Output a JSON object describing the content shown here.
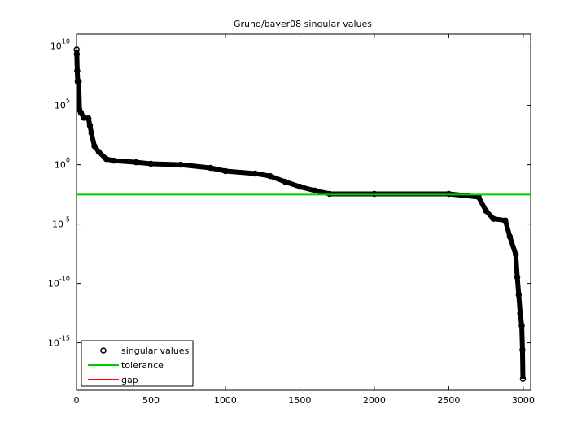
{
  "chart_data": {
    "type": "scatter",
    "title": "Grund/bayer08 singular values",
    "xlim": [
      0,
      3050
    ],
    "xticks": [
      0,
      500,
      1000,
      1500,
      2000,
      2500,
      3000
    ],
    "ylim": [
      1e-19,
      100000000000.0
    ],
    "log_y": true,
    "yticks": [
      {
        "value": 10000000000.0,
        "label": "10^10"
      },
      {
        "value": 100000.0,
        "label": "10^5"
      },
      {
        "value": 1,
        "label": "10^0"
      },
      {
        "value": 1e-05,
        "label": "10^-5"
      },
      {
        "value": 1e-10,
        "label": "10^-10"
      },
      {
        "value": 1e-15,
        "label": "10^-15"
      }
    ],
    "legend": "lower left",
    "series": [
      {
        "name": "singular values",
        "color": "#000000",
        "marker": "o",
        "x": [
          1,
          2,
          5,
          8,
          15,
          20,
          30,
          50,
          80,
          90,
          100,
          120,
          150,
          200,
          250,
          400,
          500,
          700,
          900,
          1000,
          1200,
          1300,
          1400,
          1500,
          1600,
          1700,
          2000,
          2500,
          2700,
          2750,
          2800,
          2880,
          2910,
          2950,
          2960,
          2970,
          2980,
          2990,
          2995,
          2998
        ],
        "values": [
          5000000000.0,
          2000000000.0,
          80000000.0,
          10000000.0,
          10000000.0,
          40000.0,
          23000.0,
          9000.0,
          8000.0,
          2000.0,
          460,
          37,
          12,
          3,
          2.2,
          1.6,
          1.2,
          1,
          0.54,
          0.29,
          0.18,
          0.11,
          0.037,
          0.014,
          0.0066,
          0.0035,
          0.0035,
          0.0035,
          0.0019,
          0.00013,
          2.8e-05,
          2e-05,
          8.7e-07,
          2.8e-08,
          3.4e-10,
          1.1e-11,
          3e-13,
          2.8e-14,
          2.5e-16,
          9e-19
        ]
      },
      {
        "name": "tolerance",
        "color": "#00cc00",
        "marker": null,
        "x": [
          0,
          3050
        ],
        "values": [
          0.003,
          0.003
        ]
      },
      {
        "name": "gap",
        "color": "#ff0000",
        "marker": null,
        "x": [],
        "values": []
      }
    ]
  }
}
